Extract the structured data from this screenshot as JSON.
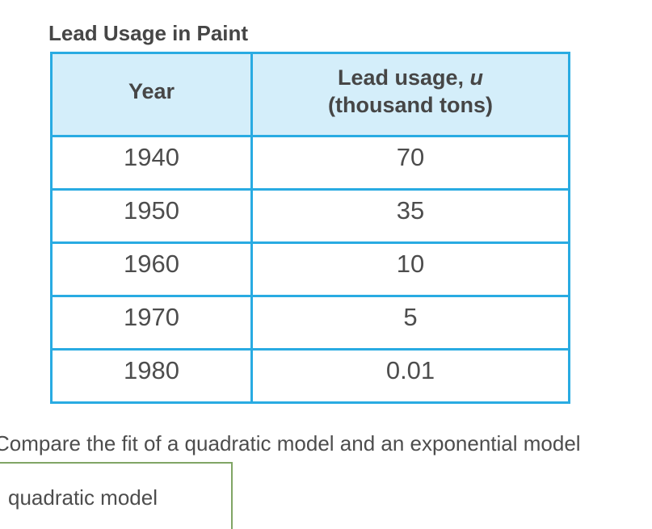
{
  "title": "Lead Usage in Paint",
  "table": {
    "headers": {
      "year": "Year",
      "usage_prefix": "Lead usage, ",
      "usage_var": "u",
      "usage_line2": "(thousand tons)"
    },
    "rows": [
      {
        "year": "1940",
        "usage": "70"
      },
      {
        "year": "1950",
        "usage": "35"
      },
      {
        "year": "1960",
        "usage": "10"
      },
      {
        "year": "1970",
        "usage": "5"
      },
      {
        "year": "1980",
        "usage": "0.01"
      }
    ]
  },
  "prompt": "Compare the fit of a quadratic model and an exponential model",
  "dropdown": {
    "selected": "quadratic model"
  },
  "colors": {
    "table_border": "#29abe2",
    "header_background": "#d4eefa",
    "dropdown_border": "#80a565",
    "text": "#4d4d4d"
  },
  "chart_data": {
    "type": "table",
    "title": "Lead Usage in Paint",
    "columns": [
      "Year",
      "Lead usage, u (thousand tons)"
    ],
    "rows": [
      [
        1940,
        70
      ],
      [
        1950,
        35
      ],
      [
        1960,
        10
      ],
      [
        1970,
        5
      ],
      [
        1980,
        0.01
      ]
    ]
  }
}
